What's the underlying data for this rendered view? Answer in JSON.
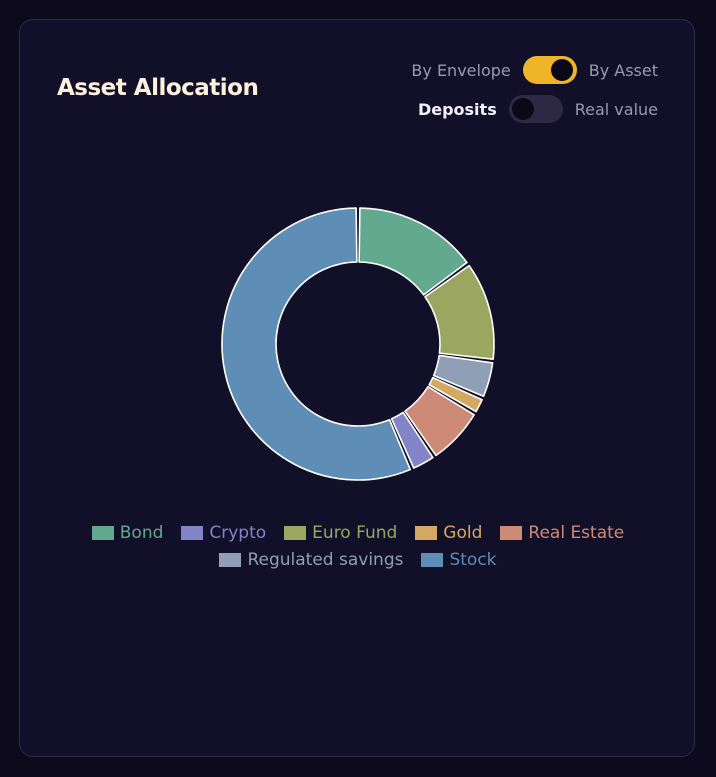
{
  "card": {
    "title": "Asset Allocation"
  },
  "toggles": {
    "view": {
      "left_label": "By Envelope",
      "right_label": "By Asset",
      "state": "on"
    },
    "mode": {
      "left_label": "Deposits",
      "right_label": "Real value",
      "state": "off"
    }
  },
  "chart_data": {
    "type": "pie",
    "donut": true,
    "legend_position": "bottom",
    "categories": [
      "Bond",
      "Crypto",
      "Euro Fund",
      "Gold",
      "Real Estate",
      "Regulated savings",
      "Stock"
    ],
    "values": [
      15,
      3,
      12,
      2,
      7,
      4.5,
      56.5
    ],
    "order": [
      "Bond",
      "Euro Fund",
      "Regulated savings",
      "Gold",
      "Real Estate",
      "Crypto",
      "Stock"
    ],
    "colors": {
      "Bond": "#62a98f",
      "Crypto": "#8384c7",
      "Euro Fund": "#9ba661",
      "Gold": "#d2a863",
      "Real Estate": "#cd8b77",
      "Regulated savings": "#8f9fb6",
      "Stock": "#5e8db5"
    }
  }
}
